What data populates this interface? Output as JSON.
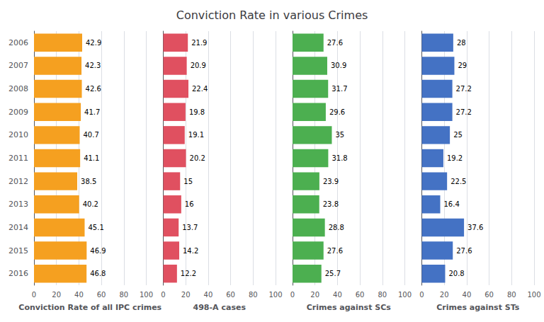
{
  "chart_data": [
    {
      "type": "bar",
      "orientation": "horizontal",
      "title": "Conviction Rate in various Crimes",
      "xlabel": "Conviction Rate of all IPC crimes",
      "categories": [
        "2006",
        "2007",
        "2008",
        "2009",
        "2010",
        "2011",
        "2012",
        "2013",
        "2014",
        "2015",
        "2016"
      ],
      "values": [
        42.9,
        42.3,
        42.6,
        41.7,
        40.7,
        41.1,
        38.5,
        40.2,
        45.1,
        46.9,
        46.8
      ],
      "color": "#F5A020",
      "xlim": [
        0,
        100
      ],
      "xticks": [
        0,
        20,
        40,
        60,
        80,
        100
      ],
      "grid": true,
      "data_labels": true
    },
    {
      "type": "bar",
      "orientation": "horizontal",
      "xlabel": "498-A cases",
      "categories": [
        "2006",
        "2007",
        "2008",
        "2009",
        "2010",
        "2011",
        "2012",
        "2013",
        "2014",
        "2015",
        "2016"
      ],
      "values": [
        21.9,
        20.9,
        22.4,
        19.8,
        19.1,
        20.2,
        15.0,
        16.0,
        13.7,
        14.2,
        12.2
      ],
      "color": "#E05060",
      "xlim": [
        0,
        100
      ],
      "xticks": [
        0,
        20,
        40,
        60,
        80,
        100
      ],
      "grid": true,
      "data_labels": true,
      "tick_labels": "x"
    },
    {
      "type": "bar",
      "orientation": "horizontal",
      "xlabel": "Crimes against SCs",
      "categories": [
        "2006",
        "2007",
        "2008",
        "2009",
        "2010",
        "2011",
        "2012",
        "2013",
        "2014",
        "2015",
        "2016"
      ],
      "values": [
        27.6,
        30.9,
        31.7,
        29.6,
        35.0,
        31.8,
        23.9,
        23.8,
        28.8,
        27.6,
        25.7
      ],
      "color": "#4CAF50",
      "xlim": [
        0,
        100
      ],
      "xticks": [
        0,
        20,
        40,
        60,
        80,
        100
      ],
      "grid": true,
      "data_labels": true,
      "tick_labels": "x"
    },
    {
      "type": "bar",
      "orientation": "horizontal",
      "xlabel": "Crimes against STs",
      "categories": [
        "2006",
        "2007",
        "2008",
        "2009",
        "2010",
        "2011",
        "2012",
        "2013",
        "2014",
        "2015",
        "2016"
      ],
      "values": [
        28.0,
        29.0,
        27.2,
        27.2,
        25.0,
        19.2,
        22.5,
        16.4,
        37.6,
        27.6,
        20.8
      ],
      "color": "#4472C4",
      "xlim": [
        0,
        100
      ],
      "xticks": [
        0,
        20,
        40,
        60,
        80,
        100
      ],
      "grid": true,
      "data_labels": true,
      "tick_labels": "x"
    }
  ]
}
